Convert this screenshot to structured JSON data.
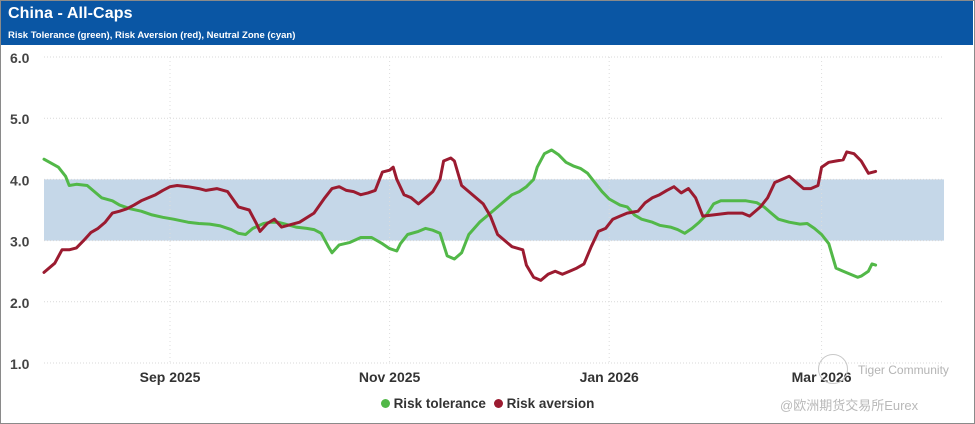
{
  "header": {
    "title": "China - All-Caps",
    "subtitle": "Risk Tolerance (green), Risk Aversion (red), Neutral Zone (cyan)"
  },
  "colors": {
    "header_bg": "#0a56a4",
    "tolerance": "#52b848",
    "aversion": "#9b1b30",
    "neutral_zone": "#c5d7e8"
  },
  "watermark": {
    "community": "Tiger Community",
    "author": "@欧洲期货交易所Eurex"
  },
  "chart_data": {
    "type": "line",
    "title": "China - All-Caps",
    "subtitle": "Risk Tolerance (green), Risk Aversion (red), Neutral Zone (cyan)",
    "xlabel": "",
    "ylabel": "",
    "ylim": [
      1.0,
      6.0
    ],
    "yticks": [
      "1.0",
      "2.0",
      "3.0",
      "4.0",
      "5.0",
      "6.0"
    ],
    "xlim_days": [
      0,
      250
    ],
    "xticks": [
      {
        "day": 35,
        "label": "Sep 2025"
      },
      {
        "day": 96,
        "label": "Nov 2025"
      },
      {
        "day": 157,
        "label": "Jan 2026"
      },
      {
        "day": 216,
        "label": "Mar 2026"
      }
    ],
    "date_range": "2025-07-28 to 2026-04-04",
    "neutral_zone": [
      3.0,
      4.0
    ],
    "legend": [
      "Risk tolerance",
      "Risk aversion"
    ],
    "series": [
      {
        "name": "Risk tolerance",
        "points": [
          [
            0,
            4.33
          ],
          [
            4,
            4.2
          ],
          [
            6,
            4.05
          ],
          [
            7,
            3.9
          ],
          [
            9,
            3.92
          ],
          [
            12,
            3.9
          ],
          [
            14,
            3.8
          ],
          [
            16,
            3.7
          ],
          [
            19,
            3.65
          ],
          [
            21,
            3.58
          ],
          [
            24,
            3.52
          ],
          [
            27,
            3.48
          ],
          [
            30,
            3.42
          ],
          [
            33,
            3.38
          ],
          [
            36,
            3.35
          ],
          [
            40,
            3.3
          ],
          [
            43,
            3.28
          ],
          [
            46,
            3.27
          ],
          [
            49,
            3.24
          ],
          [
            52,
            3.18
          ],
          [
            54,
            3.12
          ],
          [
            56,
            3.1
          ],
          [
            58,
            3.2
          ],
          [
            61,
            3.28
          ],
          [
            63,
            3.3
          ],
          [
            65,
            3.3
          ],
          [
            67,
            3.27
          ],
          [
            70,
            3.22
          ],
          [
            73,
            3.2
          ],
          [
            75,
            3.18
          ],
          [
            77,
            3.12
          ],
          [
            79,
            2.9
          ],
          [
            80,
            2.8
          ],
          [
            82,
            2.93
          ],
          [
            85,
            2.97
          ],
          [
            88,
            3.05
          ],
          [
            91,
            3.05
          ],
          [
            94,
            2.95
          ],
          [
            96,
            2.87
          ],
          [
            98,
            2.83
          ],
          [
            99,
            2.95
          ],
          [
            101,
            3.1
          ],
          [
            104,
            3.15
          ],
          [
            106,
            3.2
          ],
          [
            108,
            3.17
          ],
          [
            110,
            3.12
          ],
          [
            112,
            2.75
          ],
          [
            114,
            2.7
          ],
          [
            116,
            2.8
          ],
          [
            118,
            3.1
          ],
          [
            121,
            3.3
          ],
          [
            124,
            3.45
          ],
          [
            127,
            3.6
          ],
          [
            130,
            3.75
          ],
          [
            132,
            3.8
          ],
          [
            134,
            3.88
          ],
          [
            136,
            4.0
          ],
          [
            137,
            4.2
          ],
          [
            139,
            4.42
          ],
          [
            141,
            4.48
          ],
          [
            143,
            4.4
          ],
          [
            145,
            4.28
          ],
          [
            147,
            4.22
          ],
          [
            149,
            4.18
          ],
          [
            151,
            4.1
          ],
          [
            153,
            3.95
          ],
          [
            155,
            3.8
          ],
          [
            157,
            3.68
          ],
          [
            160,
            3.58
          ],
          [
            162,
            3.55
          ],
          [
            164,
            3.42
          ],
          [
            166,
            3.35
          ],
          [
            169,
            3.3
          ],
          [
            171,
            3.25
          ],
          [
            174,
            3.22
          ],
          [
            176,
            3.18
          ],
          [
            178,
            3.12
          ],
          [
            180,
            3.2
          ],
          [
            182,
            3.3
          ],
          [
            184,
            3.42
          ],
          [
            186,
            3.6
          ],
          [
            188,
            3.65
          ],
          [
            195,
            3.65
          ],
          [
            198,
            3.62
          ],
          [
            200,
            3.55
          ],
          [
            202,
            3.45
          ],
          [
            204,
            3.35
          ],
          [
            207,
            3.3
          ],
          [
            210,
            3.27
          ],
          [
            212,
            3.28
          ],
          [
            214,
            3.2
          ],
          [
            216,
            3.1
          ],
          [
            218,
            2.95
          ],
          [
            219,
            2.75
          ],
          [
            220,
            2.55
          ],
          [
            222,
            2.5
          ],
          [
            224,
            2.45
          ],
          [
            226,
            2.4
          ],
          [
            227,
            2.42
          ],
          [
            229,
            2.5
          ],
          [
            230,
            2.62
          ],
          [
            231,
            2.6
          ]
        ]
      },
      {
        "name": "Risk aversion",
        "points": [
          [
            0,
            2.48
          ],
          [
            3,
            2.63
          ],
          [
            5,
            2.85
          ],
          [
            7,
            2.85
          ],
          [
            9,
            2.88
          ],
          [
            11,
            3.0
          ],
          [
            13,
            3.13
          ],
          [
            15,
            3.2
          ],
          [
            17,
            3.3
          ],
          [
            19,
            3.45
          ],
          [
            21,
            3.48
          ],
          [
            23,
            3.52
          ],
          [
            25,
            3.58
          ],
          [
            27,
            3.65
          ],
          [
            29,
            3.7
          ],
          [
            31,
            3.75
          ],
          [
            33,
            3.82
          ],
          [
            35,
            3.88
          ],
          [
            37,
            3.9
          ],
          [
            40,
            3.88
          ],
          [
            43,
            3.85
          ],
          [
            45,
            3.82
          ],
          [
            48,
            3.85
          ],
          [
            51,
            3.8
          ],
          [
            54,
            3.55
          ],
          [
            57,
            3.5
          ],
          [
            59,
            3.28
          ],
          [
            60,
            3.15
          ],
          [
            62,
            3.28
          ],
          [
            64,
            3.35
          ],
          [
            66,
            3.22
          ],
          [
            71,
            3.3
          ],
          [
            75,
            3.45
          ],
          [
            78,
            3.7
          ],
          [
            80,
            3.85
          ],
          [
            82,
            3.88
          ],
          [
            84,
            3.82
          ],
          [
            86,
            3.8
          ],
          [
            88,
            3.75
          ],
          [
            90,
            3.78
          ],
          [
            92,
            3.82
          ],
          [
            94,
            4.12
          ],
          [
            96,
            4.15
          ],
          [
            97,
            4.2
          ],
          [
            98,
            4.0
          ],
          [
            100,
            3.75
          ],
          [
            102,
            3.7
          ],
          [
            104,
            3.6
          ],
          [
            106,
            3.7
          ],
          [
            108,
            3.8
          ],
          [
            110,
            4.0
          ],
          [
            111,
            4.3
          ],
          [
            113,
            4.35
          ],
          [
            114,
            4.3
          ],
          [
            116,
            3.9
          ],
          [
            118,
            3.8
          ],
          [
            120,
            3.7
          ],
          [
            122,
            3.6
          ],
          [
            124,
            3.4
          ],
          [
            126,
            3.1
          ],
          [
            128,
            3.0
          ],
          [
            130,
            2.9
          ],
          [
            133,
            2.85
          ],
          [
            134,
            2.6
          ],
          [
            136,
            2.4
          ],
          [
            138,
            2.35
          ],
          [
            140,
            2.45
          ],
          [
            142,
            2.5
          ],
          [
            144,
            2.45
          ],
          [
            146,
            2.5
          ],
          [
            148,
            2.55
          ],
          [
            150,
            2.62
          ],
          [
            152,
            2.9
          ],
          [
            154,
            3.15
          ],
          [
            156,
            3.2
          ],
          [
            158,
            3.35
          ],
          [
            160,
            3.4
          ],
          [
            162,
            3.45
          ],
          [
            165,
            3.48
          ],
          [
            167,
            3.62
          ],
          [
            169,
            3.7
          ],
          [
            171,
            3.75
          ],
          [
            173,
            3.82
          ],
          [
            175,
            3.88
          ],
          [
            177,
            3.78
          ],
          [
            179,
            3.85
          ],
          [
            181,
            3.7
          ],
          [
            183,
            3.4
          ],
          [
            186,
            3.42
          ],
          [
            190,
            3.45
          ],
          [
            194,
            3.45
          ],
          [
            196,
            3.4
          ],
          [
            199,
            3.55
          ],
          [
            201,
            3.7
          ],
          [
            203,
            3.95
          ],
          [
            205,
            4.0
          ],
          [
            207,
            4.05
          ],
          [
            209,
            3.95
          ],
          [
            211,
            3.85
          ],
          [
            213,
            3.85
          ],
          [
            215,
            3.9
          ],
          [
            216,
            4.2
          ],
          [
            218,
            4.28
          ],
          [
            220,
            4.3
          ],
          [
            222,
            4.32
          ],
          [
            223,
            4.45
          ],
          [
            225,
            4.42
          ],
          [
            227,
            4.3
          ],
          [
            229,
            4.1
          ],
          [
            231,
            4.13
          ]
        ]
      }
    ]
  }
}
